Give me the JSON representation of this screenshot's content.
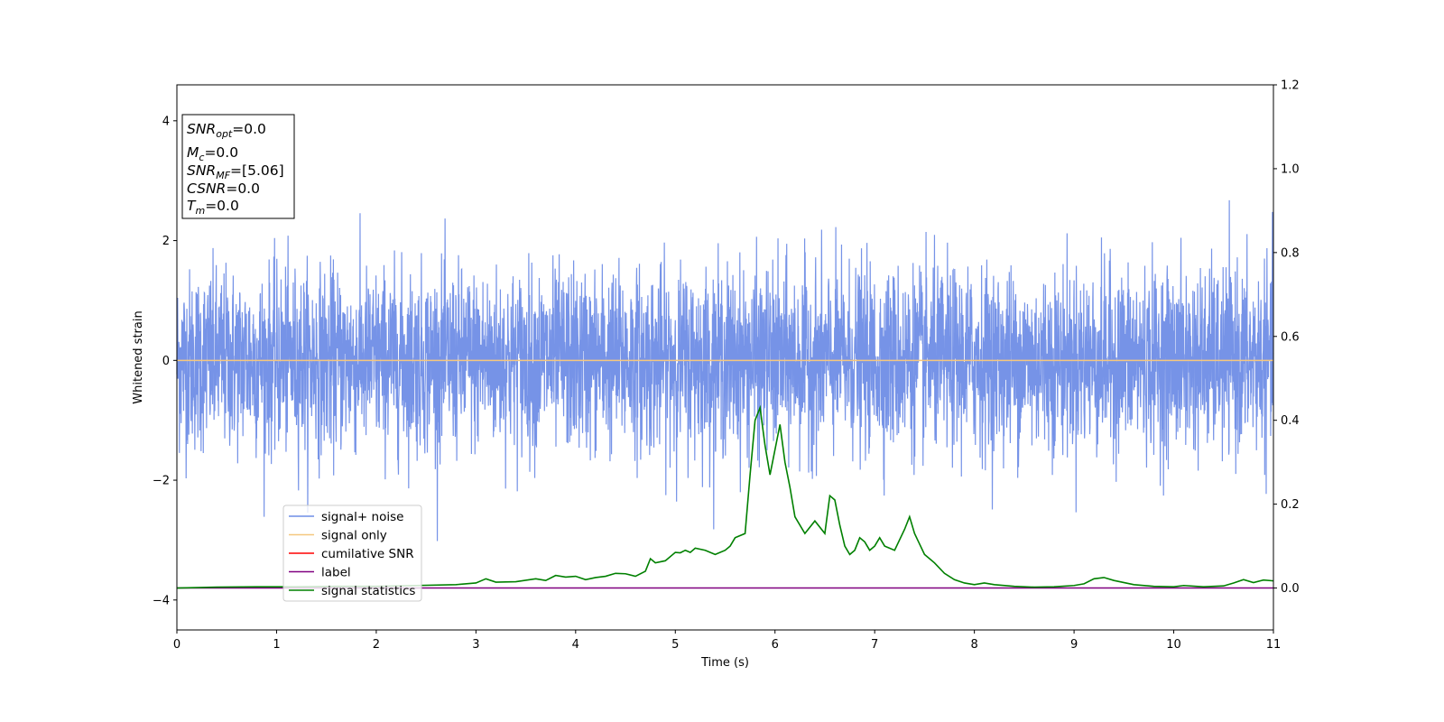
{
  "chart_data": {
    "type": "line",
    "title": "",
    "xlabel": "Time (s)",
    "ylabel": "Whitened strain",
    "xlim": [
      0,
      11
    ],
    "ylim": [
      -4.5,
      4.6
    ],
    "y2lim": [
      -0.1,
      1.2
    ],
    "xticks": [
      "0",
      "1",
      "2",
      "3",
      "4",
      "5",
      "6",
      "7",
      "8",
      "9",
      "10",
      "11"
    ],
    "yticks": [
      "−4",
      "−2",
      "0",
      "2",
      "4"
    ],
    "y2ticks": [
      "0.0",
      "0.2",
      "0.4",
      "0.6",
      "0.8",
      "1.0",
      "1.2"
    ],
    "grid": false,
    "legend_position": "lower-left",
    "annotation": {
      "snr_opt": "=0.0",
      "mc": "=0.0",
      "snr_mf": "=[5.06]",
      "csnr": "=0.0",
      "tm": "=0.0"
    },
    "series": [
      {
        "name": "signal+ noise",
        "color": "#6f8de6",
        "axis": "left",
        "description": "noise",
        "noise_sigma": 0.75
      },
      {
        "name": "signal only",
        "color": "#f5c77e",
        "axis": "left",
        "x": [
          0,
          11
        ],
        "y": [
          0,
          0
        ]
      },
      {
        "name": "cumilative SNR",
        "color": "#ff0000",
        "axis": "left",
        "x": [],
        "y": []
      },
      {
        "name": "label",
        "color": "#800080",
        "axis": "right",
        "x": [
          0,
          11
        ],
        "y": [
          0,
          0
        ]
      },
      {
        "name": "signal statistics",
        "color": "#008000",
        "axis": "right",
        "x": [
          0,
          0.4,
          0.8,
          1.2,
          1.6,
          2.0,
          2.4,
          2.8,
          3.0,
          3.1,
          3.2,
          3.4,
          3.6,
          3.7,
          3.8,
          3.9,
          4.0,
          4.1,
          4.2,
          4.3,
          4.4,
          4.5,
          4.6,
          4.7,
          4.75,
          4.8,
          4.9,
          5.0,
          5.05,
          5.1,
          5.15,
          5.2,
          5.3,
          5.4,
          5.5,
          5.55,
          5.6,
          5.7,
          5.75,
          5.8,
          5.85,
          5.9,
          5.95,
          6.0,
          6.05,
          6.1,
          6.15,
          6.2,
          6.3,
          6.4,
          6.5,
          6.55,
          6.6,
          6.65,
          6.7,
          6.75,
          6.8,
          6.85,
          6.9,
          6.95,
          7.0,
          7.05,
          7.1,
          7.2,
          7.3,
          7.35,
          7.4,
          7.5,
          7.55,
          7.6,
          7.7,
          7.8,
          7.9,
          8.0,
          8.1,
          8.2,
          8.4,
          8.6,
          8.8,
          9.0,
          9.1,
          9.2,
          9.3,
          9.4,
          9.6,
          9.8,
          10.0,
          10.1,
          10.3,
          10.5,
          10.6,
          10.7,
          10.8,
          10.9,
          11.0
        ],
        "y": [
          0,
          0.002,
          0.003,
          0.003,
          0.004,
          0.004,
          0.006,
          0.008,
          0.012,
          0.022,
          0.014,
          0.015,
          0.022,
          0.018,
          0.03,
          0.026,
          0.028,
          0.02,
          0.025,
          0.028,
          0.035,
          0.034,
          0.028,
          0.04,
          0.07,
          0.06,
          0.065,
          0.085,
          0.084,
          0.09,
          0.085,
          0.095,
          0.09,
          0.08,
          0.09,
          0.1,
          0.12,
          0.13,
          0.27,
          0.4,
          0.43,
          0.34,
          0.27,
          0.33,
          0.39,
          0.3,
          0.24,
          0.17,
          0.13,
          0.16,
          0.13,
          0.22,
          0.21,
          0.15,
          0.1,
          0.08,
          0.09,
          0.12,
          0.11,
          0.09,
          0.1,
          0.12,
          0.1,
          0.09,
          0.14,
          0.17,
          0.13,
          0.08,
          0.07,
          0.06,
          0.035,
          0.02,
          0.012,
          0.008,
          0.012,
          0.008,
          0.004,
          0.002,
          0.003,
          0.006,
          0.01,
          0.022,
          0.025,
          0.018,
          0.008,
          0.004,
          0.003,
          0.006,
          0.003,
          0.005,
          0.012,
          0.02,
          0.013,
          0.019,
          0.017
        ]
      }
    ]
  }
}
